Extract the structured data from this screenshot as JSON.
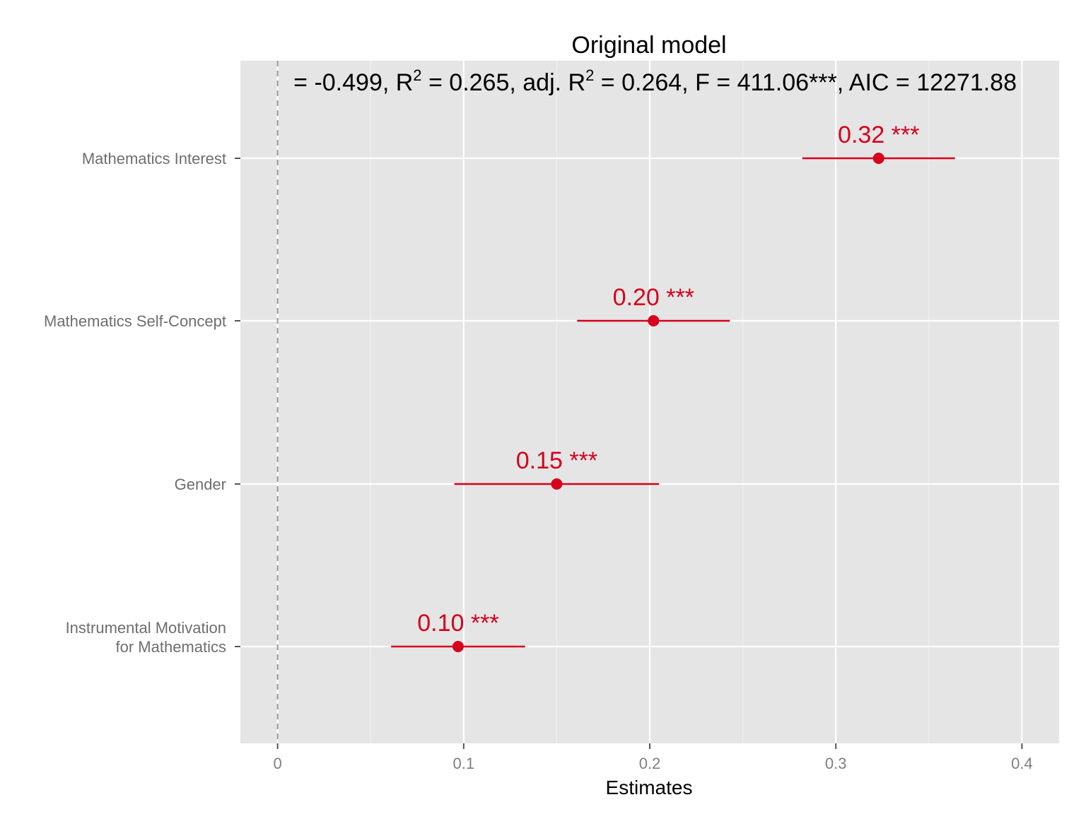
{
  "chart_data": {
    "type": "forest",
    "title": "Original model",
    "subtitle": "= -0.499, R² = 0.265, adj. R² = 0.264, F = 411.06***, AIC = 12271.88",
    "subtitle_parts": [
      "= -0.499, R",
      "2",
      " = 0.265, adj. R",
      "2",
      " = 0.264, F = 411.06***, AIC = 12271.88"
    ],
    "xlabel": "Estimates",
    "ylabel": "",
    "xlim": [
      -0.02,
      0.42
    ],
    "x_ticks": [
      0,
      0.1,
      0.2,
      0.3,
      0.4
    ],
    "x_tick_labels": [
      "0",
      "0.1",
      "0.2",
      "0.3",
      "0.4"
    ],
    "reference_line": 0,
    "grid": true,
    "color": "#d6001c",
    "terms": [
      {
        "label_lines": [
          "Mathematics Interest"
        ],
        "estimate": 0.323,
        "ci_low": 0.282,
        "ci_high": 0.364,
        "value_label": "0.32 ***"
      },
      {
        "label_lines": [
          "Mathematics Self-Concept"
        ],
        "estimate": 0.202,
        "ci_low": 0.161,
        "ci_high": 0.243,
        "value_label": "0.20 ***"
      },
      {
        "label_lines": [
          "Gender"
        ],
        "estimate": 0.15,
        "ci_low": 0.095,
        "ci_high": 0.205,
        "value_label": "0.15 ***"
      },
      {
        "label_lines": [
          "Instrumental Motivation",
          "for Mathematics"
        ],
        "estimate": 0.097,
        "ci_low": 0.061,
        "ci_high": 0.133,
        "value_label": "0.10 ***"
      }
    ]
  }
}
